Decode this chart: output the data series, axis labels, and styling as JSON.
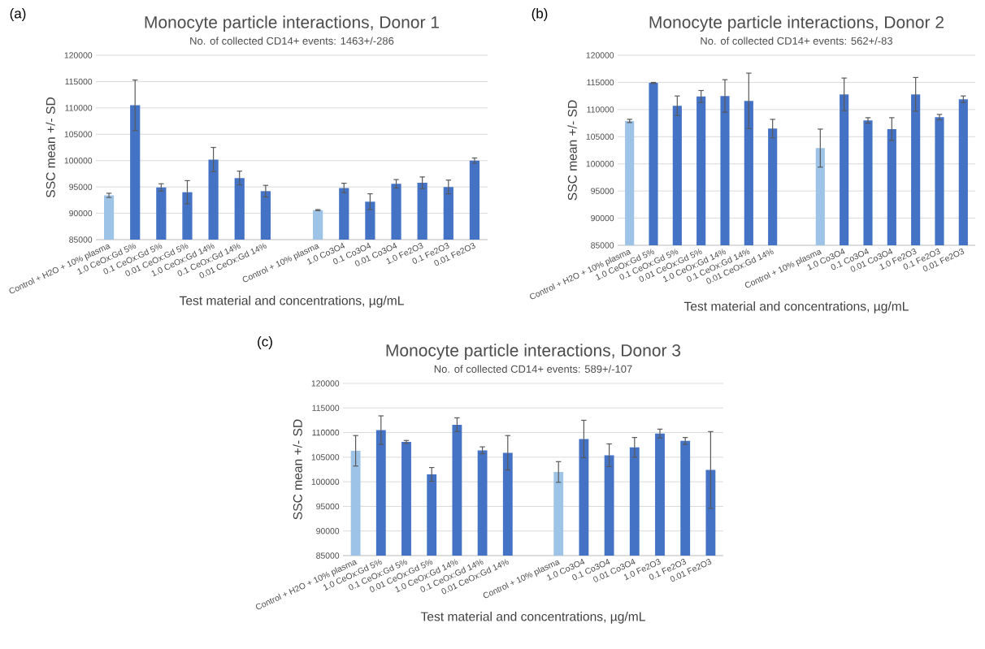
{
  "chart_data": [
    {
      "type": "bar",
      "title": "Monocyte particle interactions, Donor 1",
      "subtitle": "No. of collected CD14+ events: 1463+/-286",
      "xlabel": "Test material and concentrations, µg/mL",
      "ylabel": "SSC mean +/- SD",
      "annotations": [
        "(a)"
      ],
      "categories": [
        "Control + H2O + 10% plasma",
        "1.0 CeOx:Gd 5%",
        "0.1 CeOx:Gd 5%",
        "0.01 CeOx:Gd 5%",
        "1.0 CeOx:Gd 14%",
        "0.1 CeOx:Gd 14%",
        "0.01 CeOx:Gd 14%",
        null,
        "Control + 10% plasma",
        "1.0 Co3O4",
        "0.1 Co3O4",
        "0.01 Co3O4",
        "1.0 Fe2O3",
        "0.1 Fe2O3",
        "0.01 Fe2O3"
      ],
      "values": [
        93400,
        110500,
        94900,
        94000,
        100200,
        96700,
        94200,
        null,
        90600,
        94800,
        92200,
        95600,
        95800,
        95000,
        100000
      ],
      "errors": [
        400,
        4800,
        700,
        2200,
        2300,
        1300,
        1100,
        null,
        100,
        900,
        1500,
        800,
        1100,
        1300,
        500
      ],
      "colors": [
        "#9dc3e6",
        "#4472c4",
        "#4472c4",
        "#4472c4",
        "#4472c4",
        "#4472c4",
        "#4472c4",
        null,
        "#9dc3e6",
        "#4472c4",
        "#4472c4",
        "#4472c4",
        "#4472c4",
        "#4472c4",
        "#4472c4"
      ],
      "ylim": [
        85000,
        120000
      ],
      "yticks": [
        85000,
        90000,
        95000,
        100000,
        105000,
        110000,
        115000,
        120000
      ],
      "grid": "y"
    },
    {
      "type": "bar",
      "title": "Monocyte particle interactions, Donor 2",
      "subtitle": "No. of collected CD14+ events: 562+/-83",
      "xlabel": "Test material and concentrations, µg/mL",
      "ylabel": "SSC mean +/- SD",
      "annotations": [
        "(b)"
      ],
      "categories": [
        "Control + H2O + 10% plasma",
        "1.0 CeOx:Gd 5%",
        "0.1 CeOx:Gd 5%",
        "0.01 CeOx:Gd 5%",
        "1.0 CeOx:Gd 14%",
        "0.1 CeOx:Gd 14%",
        "0.01 CeOx:Gd 14%",
        null,
        "Control + 10% plasma",
        "1.0 Co3O4",
        "0.1 Co3O4",
        "0.01 Co3O4",
        "1.0 Fe2O3",
        "0.1 Fe2O3",
        "0.01 Fe2O3"
      ],
      "values": [
        107900,
        114900,
        110700,
        112400,
        112500,
        111600,
        106500,
        null,
        102900,
        112800,
        108000,
        106400,
        112800,
        108600,
        111900
      ],
      "errors": [
        300,
        100,
        1800,
        1100,
        3000,
        5100,
        1700,
        null,
        3500,
        3000,
        500,
        2100,
        3100,
        500,
        600
      ],
      "colors": [
        "#9dc3e6",
        "#4472c4",
        "#4472c4",
        "#4472c4",
        "#4472c4",
        "#4472c4",
        "#4472c4",
        null,
        "#9dc3e6",
        "#4472c4",
        "#4472c4",
        "#4472c4",
        "#4472c4",
        "#4472c4",
        "#4472c4"
      ],
      "ylim": [
        85000,
        120000
      ],
      "yticks": [
        85000,
        90000,
        95000,
        100000,
        105000,
        110000,
        115000,
        120000
      ],
      "grid": "y"
    },
    {
      "type": "bar",
      "title": "Monocyte particle interactions, Donor 3",
      "subtitle": "No. of collected CD14+ events: 589+/-107",
      "xlabel": "Test material and concentrations, µg/mL",
      "ylabel": "SSC mean +/- SD",
      "annotations": [
        "(c)"
      ],
      "categories": [
        "Control + H2O + 10% plasma",
        "1.0 CeOx:Gd 5%",
        "0.1 CeOx:Gd 5%",
        "0.01 CeOx:Gd 5%",
        "1.0 CeOx:Gd 14%",
        "0.1 CeOx:Gd 14%",
        "0.01 CeOx:Gd 14%",
        null,
        "Control + 10% plasma",
        "1.0 Co3O4",
        "0.1 Co3O4",
        "0.01 Co3O4",
        "1.0 Fe2O3",
        "0.1 Fe2O3",
        "0.01 Fe2O3"
      ],
      "values": [
        106300,
        110500,
        108100,
        101500,
        111600,
        106400,
        105900,
        null,
        102000,
        108700,
        105400,
        107000,
        109800,
        108300,
        102400
      ],
      "errors": [
        3100,
        2900,
        300,
        1400,
        1400,
        700,
        3500,
        null,
        2100,
        3800,
        2300,
        2000,
        900,
        700,
        7800
      ],
      "colors": [
        "#9dc3e6",
        "#4472c4",
        "#4472c4",
        "#4472c4",
        "#4472c4",
        "#4472c4",
        "#4472c4",
        null,
        "#9dc3e6",
        "#4472c4",
        "#4472c4",
        "#4472c4",
        "#4472c4",
        "#4472c4",
        "#4472c4"
      ],
      "ylim": [
        85000,
        120000
      ],
      "yticks": [
        85000,
        90000,
        95000,
        100000,
        105000,
        110000,
        115000,
        120000
      ],
      "grid": "y"
    }
  ]
}
